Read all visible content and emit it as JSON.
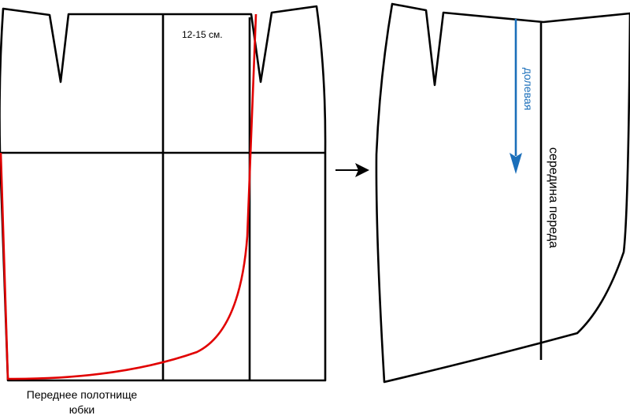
{
  "left_piece": {
    "measure_label": "12-15 см.",
    "caption_line1": "Переднее полотнище",
    "caption_line2": "юбки"
  },
  "right_piece": {
    "grain_label": "долевая",
    "center_label": "середина переда"
  },
  "colors": {
    "outline": "#000000",
    "cut_line": "#e10000",
    "grain_arrow": "#1b6fba"
  }
}
